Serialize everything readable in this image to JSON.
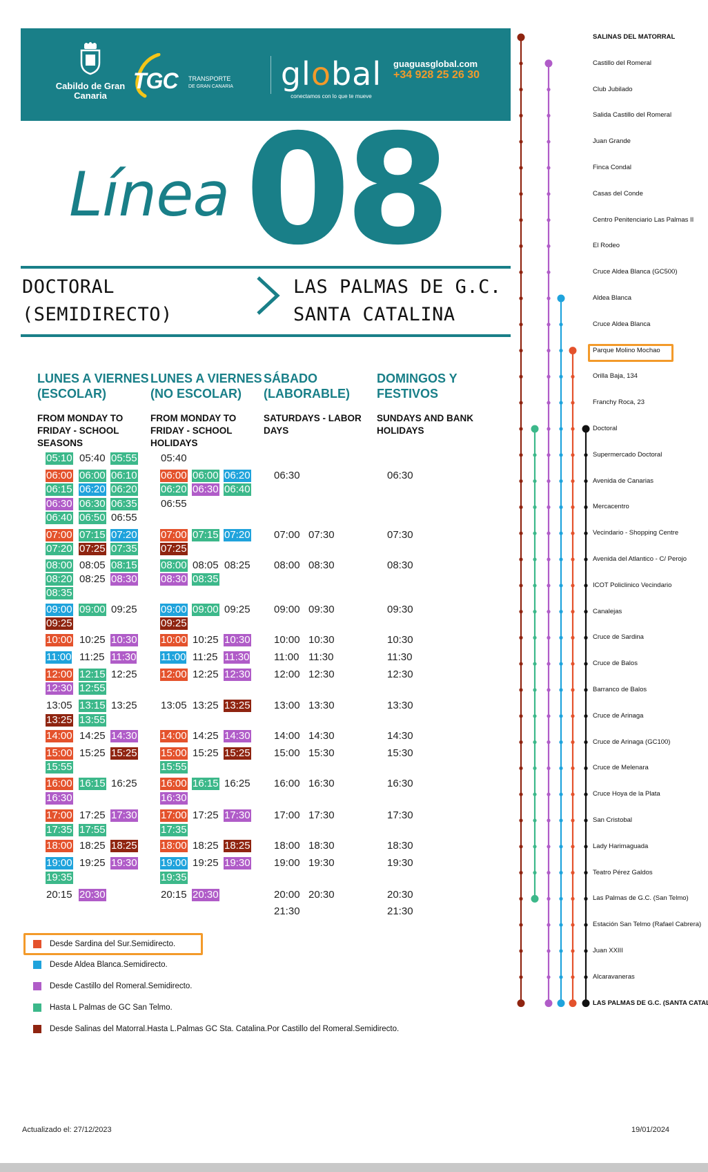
{
  "header": {
    "cabildo": "Cabildo de Gran Canaria",
    "tgc": "TGC",
    "tgc_sub_1": "TRANSPORTE",
    "tgc_sub_2": "DE GRAN CANARIA",
    "global_word": "global",
    "global_tagline": "conectamos con lo que te mueve",
    "website": "guaguasglobal.com",
    "phone": "+34 928 25 26 30"
  },
  "title": {
    "linea": "Línea",
    "number": "08"
  },
  "route": {
    "origin_1": "DOCTORAL",
    "origin_2": "(SEMIDIRECTO)",
    "dest_1": "LAS PALMAS DE G.C.",
    "dest_2": "SANTA CATALINA"
  },
  "columns": [
    {
      "es_1": "LUNES A VIERNES",
      "es_2": "(ESCOLAR)",
      "en_1": "FROM MONDAY TO",
      "en_2": "FRIDAY - SCHOOL",
      "en_3": "SEASONS"
    },
    {
      "es_1": "LUNES A VIERNES",
      "es_2": "(NO ESCOLAR)",
      "en_1": "FROM MONDAY TO",
      "en_2": "FRIDAY - SCHOOL",
      "en_3": "HOLIDAYS"
    },
    {
      "es_1": "SÁBADO",
      "es_2": "(LABORABLE)",
      "en_1": "SATURDAYS - LABOR",
      "en_2": "DAYS",
      "en_3": ""
    },
    {
      "es_1": "DOMINGOS Y",
      "es_2": "FESTIVOS",
      "en_1": "SUNDAYS AND BANK",
      "en_2": "HOLIDAYS",
      "en_3": ""
    }
  ],
  "colors": {
    "red": "#e4522c",
    "blue": "#1fa3dc",
    "purple": "#b05cc8",
    "green": "#3cb88a",
    "brown": "#8f2410",
    "teal": "#197f88",
    "orange": "#f39a2a"
  },
  "schedule_rows": [
    {
      "c0": [
        [
          "05:10",
          "green"
        ],
        [
          "05:40",
          "plain"
        ],
        [
          "05:55",
          "green"
        ]
      ],
      "c1": [
        [
          "05:40",
          "plain"
        ]
      ]
    },
    {
      "c0": [
        [
          "06:00",
          "red"
        ],
        [
          "06:00",
          "green"
        ],
        [
          "06:10",
          "green"
        ]
      ],
      "c1": [
        [
          "06:00",
          "red"
        ],
        [
          "06:00",
          "green"
        ],
        [
          "06:20",
          "blue"
        ]
      ],
      "c2": [
        [
          "06:30",
          "plain"
        ]
      ],
      "c3": [
        [
          "06:30",
          "plain"
        ]
      ]
    },
    {
      "c0": [
        [
          "06:15",
          "green"
        ],
        [
          "06:20",
          "blue"
        ],
        [
          "06:20",
          "green"
        ]
      ],
      "c1": [
        [
          "06:20",
          "green"
        ],
        [
          "06:30",
          "purple"
        ],
        [
          "06:40",
          "green"
        ]
      ]
    },
    {
      "c0": [
        [
          "06:30",
          "purple"
        ],
        [
          "06:30",
          "green"
        ],
        [
          "06:35",
          "green"
        ]
      ],
      "c1": [
        [
          "06:55",
          "plain"
        ]
      ]
    },
    {
      "c0": [
        [
          "06:40",
          "green"
        ],
        [
          "06:50",
          "green"
        ],
        [
          "06:55",
          "plain"
        ]
      ]
    },
    {
      "c0": [
        [
          "07:00",
          "red"
        ],
        [
          "07:15",
          "green"
        ],
        [
          "07:20",
          "blue"
        ]
      ],
      "c1": [
        [
          "07:00",
          "red"
        ],
        [
          "07:15",
          "green"
        ],
        [
          "07:20",
          "blue"
        ]
      ],
      "c2": [
        [
          "07:00",
          "plain"
        ],
        [
          "07:30",
          "plain"
        ]
      ],
      "c3": [
        [
          "07:30",
          "plain"
        ]
      ]
    },
    {
      "c0": [
        [
          "07:20",
          "green"
        ],
        [
          "07:25",
          "brown"
        ],
        [
          "07:35",
          "green"
        ]
      ],
      "c1": [
        [
          "07:25",
          "brown"
        ]
      ]
    },
    {
      "c0": [
        [
          "08:00",
          "green"
        ],
        [
          "08:05",
          "plain"
        ],
        [
          "08:15",
          "green"
        ]
      ],
      "c1": [
        [
          "08:00",
          "green"
        ],
        [
          "08:05",
          "plain"
        ],
        [
          "08:25",
          "plain"
        ]
      ],
      "c2": [
        [
          "08:00",
          "plain"
        ],
        [
          "08:30",
          "plain"
        ]
      ],
      "c3": [
        [
          "08:30",
          "plain"
        ]
      ]
    },
    {
      "c0": [
        [
          "08:20",
          "green"
        ],
        [
          "08:25",
          "plain"
        ],
        [
          "08:30",
          "purple"
        ]
      ],
      "c1": [
        [
          "08:30",
          "purple"
        ],
        [
          "08:35",
          "green"
        ]
      ]
    },
    {
      "c0": [
        [
          "08:35",
          "green"
        ]
      ]
    },
    {
      "c0": [
        [
          "09:00",
          "blue"
        ],
        [
          "09:00",
          "green"
        ],
        [
          "09:25",
          "plain"
        ]
      ],
      "c1": [
        [
          "09:00",
          "blue"
        ],
        [
          "09:00",
          "green"
        ],
        [
          "09:25",
          "plain"
        ]
      ],
      "c2": [
        [
          "09:00",
          "plain"
        ],
        [
          "09:30",
          "plain"
        ]
      ],
      "c3": [
        [
          "09:30",
          "plain"
        ]
      ]
    },
    {
      "c0": [
        [
          "09:25",
          "brown"
        ]
      ],
      "c1": [
        [
          "09:25",
          "brown"
        ]
      ]
    },
    {
      "c0": [
        [
          "10:00",
          "red"
        ],
        [
          "10:25",
          "plain"
        ],
        [
          "10:30",
          "purple"
        ]
      ],
      "c1": [
        [
          "10:00",
          "red"
        ],
        [
          "10:25",
          "plain"
        ],
        [
          "10:30",
          "purple"
        ]
      ],
      "c2": [
        [
          "10:00",
          "plain"
        ],
        [
          "10:30",
          "plain"
        ]
      ],
      "c3": [
        [
          "10:30",
          "plain"
        ]
      ]
    },
    {
      "c0": [
        [
          "11:00",
          "blue"
        ],
        [
          "11:25",
          "plain"
        ],
        [
          "11:30",
          "purple"
        ]
      ],
      "c1": [
        [
          "11:00",
          "blue"
        ],
        [
          "11:25",
          "plain"
        ],
        [
          "11:30",
          "purple"
        ]
      ],
      "c2": [
        [
          "11:00",
          "plain"
        ],
        [
          "11:30",
          "plain"
        ]
      ],
      "c3": [
        [
          "11:30",
          "plain"
        ]
      ]
    },
    {
      "c0": [
        [
          "12:00",
          "red"
        ],
        [
          "12:15",
          "green"
        ],
        [
          "12:25",
          "plain"
        ]
      ],
      "c1": [
        [
          "12:00",
          "red"
        ],
        [
          "12:25",
          "plain"
        ],
        [
          "12:30",
          "purple"
        ]
      ],
      "c2": [
        [
          "12:00",
          "plain"
        ],
        [
          "12:30",
          "plain"
        ]
      ],
      "c3": [
        [
          "12:30",
          "plain"
        ]
      ]
    },
    {
      "c0": [
        [
          "12:30",
          "purple"
        ],
        [
          "12:55",
          "green"
        ]
      ]
    },
    {
      "c0": [
        [
          "13:05",
          "plain"
        ],
        [
          "13:15",
          "green"
        ],
        [
          "13:25",
          "plain"
        ]
      ],
      "c1": [
        [
          "13:05",
          "plain"
        ],
        [
          "13:25",
          "plain"
        ],
        [
          "13:25",
          "brown"
        ]
      ],
      "c2": [
        [
          "13:00",
          "plain"
        ],
        [
          "13:30",
          "plain"
        ]
      ],
      "c3": [
        [
          "13:30",
          "plain"
        ]
      ]
    },
    {
      "c0": [
        [
          "13:25",
          "brown"
        ],
        [
          "13:55",
          "green"
        ]
      ]
    },
    {
      "c0": [
        [
          "14:00",
          "red"
        ],
        [
          "14:25",
          "plain"
        ],
        [
          "14:30",
          "purple"
        ]
      ],
      "c1": [
        [
          "14:00",
          "red"
        ],
        [
          "14:25",
          "plain"
        ],
        [
          "14:30",
          "purple"
        ]
      ],
      "c2": [
        [
          "14:00",
          "plain"
        ],
        [
          "14:30",
          "plain"
        ]
      ],
      "c3": [
        [
          "14:30",
          "plain"
        ]
      ]
    },
    {
      "c0": [
        [
          "15:00",
          "red"
        ],
        [
          "15:25",
          "plain"
        ],
        [
          "15:25",
          "brown"
        ]
      ],
      "c1": [
        [
          "15:00",
          "red"
        ],
        [
          "15:25",
          "plain"
        ],
        [
          "15:25",
          "brown"
        ]
      ],
      "c2": [
        [
          "15:00",
          "plain"
        ],
        [
          "15:30",
          "plain"
        ]
      ],
      "c3": [
        [
          "15:30",
          "plain"
        ]
      ]
    },
    {
      "c0": [
        [
          "15:55",
          "green"
        ]
      ],
      "c1": [
        [
          "15:55",
          "green"
        ]
      ]
    },
    {
      "c0": [
        [
          "16:00",
          "red"
        ],
        [
          "16:15",
          "green"
        ],
        [
          "16:25",
          "plain"
        ]
      ],
      "c1": [
        [
          "16:00",
          "red"
        ],
        [
          "16:15",
          "green"
        ],
        [
          "16:25",
          "plain"
        ]
      ],
      "c2": [
        [
          "16:00",
          "plain"
        ],
        [
          "16:30",
          "plain"
        ]
      ],
      "c3": [
        [
          "16:30",
          "plain"
        ]
      ]
    },
    {
      "c0": [
        [
          "16:30",
          "purple"
        ]
      ],
      "c1": [
        [
          "16:30",
          "purple"
        ]
      ]
    },
    {
      "c0": [
        [
          "17:00",
          "red"
        ],
        [
          "17:25",
          "plain"
        ],
        [
          "17:30",
          "purple"
        ]
      ],
      "c1": [
        [
          "17:00",
          "red"
        ],
        [
          "17:25",
          "plain"
        ],
        [
          "17:30",
          "purple"
        ]
      ],
      "c2": [
        [
          "17:00",
          "plain"
        ],
        [
          "17:30",
          "plain"
        ]
      ],
      "c3": [
        [
          "17:30",
          "plain"
        ]
      ]
    },
    {
      "c0": [
        [
          "17:35",
          "green"
        ],
        [
          "17:55",
          "green"
        ]
      ],
      "c1": [
        [
          "17:35",
          "green"
        ]
      ]
    },
    {
      "c0": [
        [
          "18:00",
          "red"
        ],
        [
          "18:25",
          "plain"
        ],
        [
          "18:25",
          "brown"
        ]
      ],
      "c1": [
        [
          "18:00",
          "red"
        ],
        [
          "18:25",
          "plain"
        ],
        [
          "18:25",
          "brown"
        ]
      ],
      "c2": [
        [
          "18:00",
          "plain"
        ],
        [
          "18:30",
          "plain"
        ]
      ],
      "c3": [
        [
          "18:30",
          "plain"
        ]
      ]
    },
    {
      "c0": [
        [
          "19:00",
          "blue"
        ],
        [
          "19:25",
          "plain"
        ],
        [
          "19:30",
          "purple"
        ]
      ],
      "c1": [
        [
          "19:00",
          "blue"
        ],
        [
          "19:25",
          "plain"
        ],
        [
          "19:30",
          "purple"
        ]
      ],
      "c2": [
        [
          "19:00",
          "plain"
        ],
        [
          "19:30",
          "plain"
        ]
      ],
      "c3": [
        [
          "19:30",
          "plain"
        ]
      ]
    },
    {
      "c0": [
        [
          "19:35",
          "green"
        ]
      ],
      "c1": [
        [
          "19:35",
          "green"
        ]
      ]
    },
    {
      "c0": [
        [
          "20:15",
          "plain"
        ],
        [
          "20:30",
          "purple"
        ]
      ],
      "c1": [
        [
          "20:15",
          "plain"
        ],
        [
          "20:30",
          "purple"
        ]
      ],
      "c2": [
        [
          "20:00",
          "plain"
        ],
        [
          "20:30",
          "plain"
        ]
      ],
      "c3": [
        [
          "20:30",
          "plain"
        ]
      ]
    },
    {
      "c2": [
        [
          "21:30",
          "plain"
        ]
      ],
      "c3": [
        [
          "21:30",
          "plain"
        ]
      ]
    }
  ],
  "legend": [
    {
      "color": "red",
      "text": "Desde Sardina del Sur.Semidirecto."
    },
    {
      "color": "blue",
      "text": "Desde Aldea Blanca.Semidirecto."
    },
    {
      "color": "purple",
      "text": "Desde Castillo del Romeral.Semidirecto."
    },
    {
      "color": "green",
      "text": "Hasta L Palmas de GC San Telmo."
    },
    {
      "color": "brown",
      "text": "Desde Salinas del Matorral.Hasta L.Palmas GC Sta. Catalina.Por Castillo del Romeral.Semidirecto."
    }
  ],
  "footer": {
    "updated": "Actualizado el:  27/12/2023",
    "date": "19/01/2024"
  },
  "stops": [
    {
      "name": "SALINAS DEL MATORRAL",
      "bold": true
    },
    {
      "name": "Castillo del Romeral"
    },
    {
      "name": "Club Jubilado"
    },
    {
      "name": "Salida Castillo del Romeral"
    },
    {
      "name": "Juan Grande"
    },
    {
      "name": "Finca Condal"
    },
    {
      "name": "Casas del Conde"
    },
    {
      "name": "Centro Penitenciario Las Palmas II"
    },
    {
      "name": "El Rodeo"
    },
    {
      "name": "Cruce Aldea Blanca (GC500)"
    },
    {
      "name": "Aldea Blanca"
    },
    {
      "name": "Cruce Aldea Blanca"
    },
    {
      "name": "Parque Molino Mochao"
    },
    {
      "name": "Orilla Baja, 134"
    },
    {
      "name": "Franchy Roca, 23"
    },
    {
      "name": "Doctoral"
    },
    {
      "name": "Supermercado Doctoral"
    },
    {
      "name": "Avenida de Canarias"
    },
    {
      "name": "Mercacentro"
    },
    {
      "name": "Vecindario - Shopping Centre"
    },
    {
      "name": "Avenida del Atlantico - C/ Perojo"
    },
    {
      "name": "ICOT  Policlinico Vecindario"
    },
    {
      "name": "Canalejas"
    },
    {
      "name": "Cruce de Sardina"
    },
    {
      "name": "Cruce de Balos"
    },
    {
      "name": "Barranco de Balos"
    },
    {
      "name": "Cruce de Arinaga"
    },
    {
      "name": "Cruce de Arinaga (GC100)"
    },
    {
      "name": "Cruce de Melenara"
    },
    {
      "name": "Cruce Hoya de la Plata"
    },
    {
      "name": "San Cristobal"
    },
    {
      "name": "Lady Harimaguada"
    },
    {
      "name": "Teatro Pérez Galdos"
    },
    {
      "name": "Las Palmas de G.C. (San Telmo)"
    },
    {
      "name": "Estación San Telmo (Rafael Cabrera)"
    },
    {
      "name": "Juan XXIII"
    },
    {
      "name": "Alcaravaneras"
    },
    {
      "name": "LAS PALMAS DE G.C. (SANTA CATALINA)",
      "bold": true
    }
  ]
}
